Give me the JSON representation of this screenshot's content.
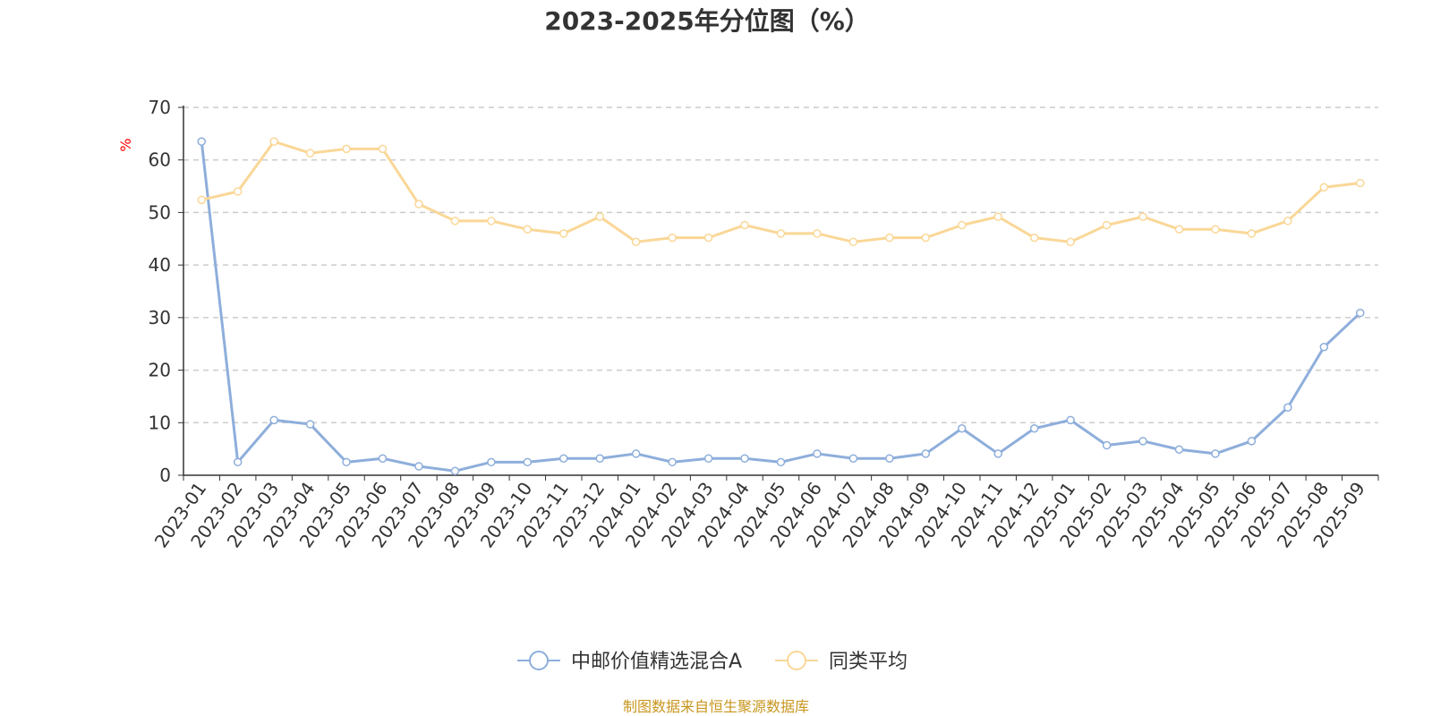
{
  "chart_data": {
    "type": "line",
    "title": "2023-2025年分位图（%）",
    "ylabel": "%",
    "ylim": [
      0,
      70
    ],
    "yticks": [
      0,
      10,
      20,
      30,
      40,
      50,
      60,
      70
    ],
    "grid": true,
    "legend_position": "bottom-center",
    "categories": [
      "2023-01",
      "2023-02",
      "2023-03",
      "2023-04",
      "2023-05",
      "2023-06",
      "2023-07",
      "2023-08",
      "2023-09",
      "2023-10",
      "2023-11",
      "2023-12",
      "2024-01",
      "2024-02",
      "2024-03",
      "2024-04",
      "2024-05",
      "2024-06",
      "2024-07",
      "2024-08",
      "2024-09",
      "2024-10",
      "2024-11",
      "2024-12",
      "2025-01",
      "2025-02",
      "2025-03",
      "2025-04",
      "2025-05",
      "2025-06",
      "2025-07",
      "2025-08",
      "2025-09"
    ],
    "series": [
      {
        "name": "中邮价值精选混合A",
        "color": "#8eaedb",
        "values": [
          63.5,
          2.5,
          10.5,
          9.7,
          2.5,
          3.2,
          1.7,
          0.8,
          2.5,
          2.5,
          3.2,
          3.2,
          4.1,
          2.5,
          3.2,
          3.2,
          2.5,
          4.1,
          3.2,
          3.2,
          4.1,
          8.9,
          4.1,
          8.9,
          10.5,
          5.7,
          6.5,
          4.9,
          4.1,
          6.5,
          12.9,
          24.4,
          30.9
        ]
      },
      {
        "name": "同类平均",
        "color": "#fad797",
        "values": [
          52.4,
          54.0,
          63.5,
          61.3,
          62.1,
          62.1,
          51.6,
          48.4,
          48.4,
          46.8,
          46.0,
          49.2,
          44.4,
          45.2,
          45.2,
          47.6,
          46.0,
          46.0,
          44.4,
          45.2,
          45.2,
          47.6,
          49.2,
          45.2,
          44.4,
          47.6,
          49.2,
          46.8,
          46.8,
          46.0,
          48.4,
          54.8,
          55.6
        ]
      }
    ],
    "source": "制图数据来自恒生聚源数据库"
  }
}
